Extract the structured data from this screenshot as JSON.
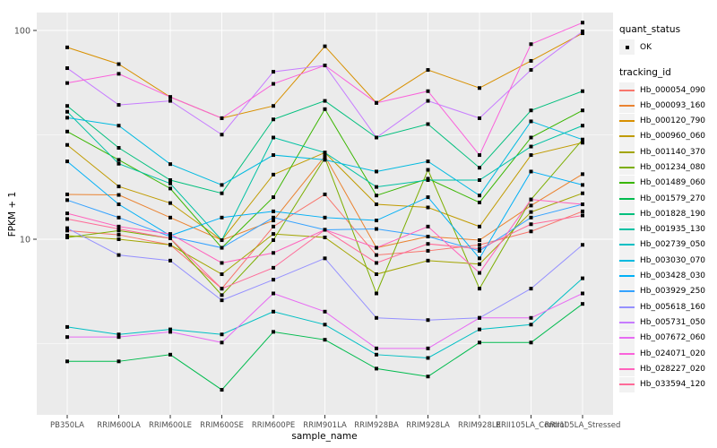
{
  "chart_data": {
    "type": "line",
    "title": "",
    "xlabel": "sample_name",
    "ylabel": "FPKM + 1",
    "y_scale": "log10",
    "y_ticks": [
      100,
      10
    ],
    "y_minor_gridlines": [
      31.62,
      3.162
    ],
    "panel_bg": "#EBEBEB",
    "grid_color": "#FFFFFF",
    "marker": {
      "shape": "square",
      "color": "#000000"
    },
    "legend": {
      "position": "right",
      "quant_status_title": "quant_status",
      "quant_status_value": "OK",
      "tracking_title": "tracking_id"
    },
    "categories": [
      "PB350LA",
      "RRIM600LA",
      "RRIM600LE",
      "RRIM600SE",
      "RRIM600PE",
      "RRIM901LA",
      "RRIM928BA",
      "RRIM928LA",
      "RRIM928LE",
      "RRII105LA_Control",
      "RRII105LA_Stressed"
    ],
    "series": [
      {
        "name": "Hb_000054_090",
        "color": "#F8766D",
        "values": [
          11.0,
          10.5,
          9.4,
          5.8,
          11.5,
          16.4,
          8.4,
          8.8,
          9.4,
          10.9,
          13.6
        ]
      },
      {
        "name": "Hb_000093_160",
        "color": "#EA8331",
        "values": [
          16.4,
          16.3,
          12.7,
          9.9,
          12.3,
          25.0,
          9.1,
          10.3,
          9.9,
          14.5,
          20.5
        ]
      },
      {
        "name": "Hb_000120_790",
        "color": "#D89000",
        "values": [
          83.0,
          69.0,
          48.0,
          38.0,
          43.5,
          84.0,
          45.0,
          64.7,
          53.0,
          71.5,
          97.0
        ]
      },
      {
        "name": "Hb_000960_060",
        "color": "#C09B00",
        "values": [
          28.3,
          17.9,
          14.9,
          9.9,
          20.4,
          26.0,
          14.7,
          14.2,
          11.5,
          25.3,
          29.0
        ]
      },
      {
        "name": "Hb_001140_370",
        "color": "#A3A500",
        "values": [
          10.4,
          10.0,
          9.4,
          6.8,
          10.6,
          10.2,
          6.8,
          7.9,
          7.6,
          13.5,
          16.6
        ]
      },
      {
        "name": "Hb_001234_080",
        "color": "#7CAE00",
        "values": [
          10.2,
          11.0,
          10.1,
          5.4,
          9.9,
          24.5,
          5.5,
          21.5,
          5.8,
          15.5,
          30.0
        ]
      },
      {
        "name": "Hb_001489_060",
        "color": "#39B600",
        "values": [
          32.8,
          24.0,
          17.5,
          9.1,
          15.9,
          42.0,
          16.2,
          19.5,
          15.0,
          30.7,
          41.4
        ]
      },
      {
        "name": "Hb_001579_270",
        "color": "#00BB4E",
        "values": [
          2.6,
          2.6,
          2.8,
          1.9,
          3.6,
          3.3,
          2.4,
          2.2,
          3.2,
          3.2,
          4.9
        ]
      },
      {
        "name": "Hb_001828_190",
        "color": "#00BF7D",
        "values": [
          43.5,
          27.4,
          19.2,
          16.6,
          37.5,
          46.0,
          30.7,
          35.6,
          22.0,
          41.4,
          51.2
        ]
      },
      {
        "name": "Hb_001935_130",
        "color": "#00C1A3",
        "values": [
          40.8,
          23.0,
          18.5,
          9.9,
          30.7,
          26.0,
          17.8,
          19.2,
          19.2,
          27.8,
          35.0
        ]
      },
      {
        "name": "Hb_002739_050",
        "color": "#00BFC4",
        "values": [
          3.8,
          3.5,
          3.7,
          3.5,
          4.5,
          3.9,
          2.8,
          2.7,
          3.7,
          3.9,
          6.5
        ]
      },
      {
        "name": "Hb_003030_070",
        "color": "#00BAE0",
        "values": [
          38.2,
          35.0,
          22.9,
          18.2,
          25.3,
          24.0,
          21.1,
          23.6,
          16.2,
          36.7,
          30.0
        ]
      },
      {
        "name": "Hb_003428_030",
        "color": "#00B0F6",
        "values": [
          23.6,
          14.7,
          10.4,
          12.7,
          13.6,
          12.7,
          12.3,
          15.9,
          8.1,
          21.1,
          18.2
        ]
      },
      {
        "name": "Hb_003929_250",
        "color": "#35A2FF",
        "values": [
          15.4,
          12.7,
          10.3,
          9.1,
          12.7,
          11.1,
          11.2,
          10.3,
          8.8,
          12.7,
          14.7
        ]
      },
      {
        "name": "Hb_005618_160",
        "color": "#9590FF",
        "values": [
          11.3,
          8.4,
          7.9,
          5.1,
          6.4,
          8.1,
          4.2,
          4.1,
          4.2,
          5.8,
          9.4
        ]
      },
      {
        "name": "Hb_005731_050",
        "color": "#C77CFF",
        "values": [
          66.0,
          44.0,
          46.0,
          31.7,
          63.4,
          68.0,
          30.7,
          46.0,
          38.0,
          64.7,
          99.0
        ]
      },
      {
        "name": "Hb_007672_060",
        "color": "#E76BF3",
        "values": [
          3.4,
          3.4,
          3.6,
          3.2,
          5.5,
          4.5,
          3.0,
          3.0,
          4.2,
          4.2,
          5.5
        ]
      },
      {
        "name": "Hb_024071_020",
        "color": "#FA62DB",
        "values": [
          56.0,
          62.0,
          48.0,
          38.0,
          55.5,
          68.0,
          45.0,
          51.2,
          25.3,
          86.0,
          109.0
        ]
      },
      {
        "name": "Hb_028227_020",
        "color": "#FF62BC",
        "values": [
          13.3,
          11.5,
          10.6,
          7.7,
          8.6,
          11.1,
          9.1,
          11.5,
          6.9,
          15.5,
          14.7
        ]
      },
      {
        "name": "Hb_033594_120",
        "color": "#FF6A98",
        "values": [
          12.5,
          11.2,
          10.1,
          5.8,
          7.3,
          11.1,
          7.7,
          9.5,
          9.0,
          11.8,
          13.0
        ]
      }
    ]
  }
}
